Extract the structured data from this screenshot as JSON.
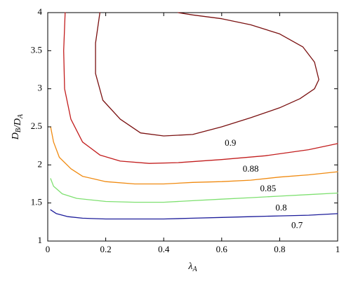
{
  "chart_data": {
    "type": "line",
    "xlabel": "λ",
    "xlabel_sub": "A",
    "ylabel_parts": [
      {
        "t": "D",
        "sub": "B"
      },
      {
        "t": "/",
        "sub": ""
      },
      {
        "t": "D",
        "sub": "A"
      }
    ],
    "xlim": [
      0,
      1
    ],
    "ylim": [
      1,
      4
    ],
    "x_ticks": [
      0,
      0.2,
      0.4,
      0.6,
      0.8,
      1
    ],
    "x_tick_labels": [
      "0",
      "0.2",
      "0.4",
      "0.6",
      "0.8",
      "1"
    ],
    "y_ticks": [
      1,
      1.5,
      2,
      2.5,
      3,
      3.5,
      4
    ],
    "y_tick_labels": [
      "1",
      "1.5",
      "2",
      "2.5",
      "3",
      "3.5",
      "4"
    ],
    "grid": false,
    "series": [
      {
        "name": "0.9",
        "color": "#7a1010",
        "label_at": [
          0.63,
          2.28
        ],
        "points": [
          [
            0.18,
            4.0
          ],
          [
            0.165,
            3.6
          ],
          [
            0.165,
            3.2
          ],
          [
            0.19,
            2.85
          ],
          [
            0.25,
            2.6
          ],
          [
            0.32,
            2.42
          ],
          [
            0.4,
            2.38
          ],
          [
            0.5,
            2.4
          ],
          [
            0.6,
            2.5
          ],
          [
            0.7,
            2.62
          ],
          [
            0.8,
            2.75
          ],
          [
            0.87,
            2.87
          ],
          [
            0.92,
            3.0
          ],
          [
            0.935,
            3.12
          ],
          [
            0.92,
            3.35
          ],
          [
            0.88,
            3.55
          ],
          [
            0.8,
            3.72
          ],
          [
            0.7,
            3.84
          ],
          [
            0.6,
            3.92
          ],
          [
            0.5,
            3.97
          ],
          [
            0.45,
            4.0
          ]
        ]
      },
      {
        "name": "0.88",
        "color": "#c21d1d",
        "label_at": [
          0.7,
          1.94
        ],
        "points": [
          [
            0.06,
            4.0
          ],
          [
            0.055,
            3.5
          ],
          [
            0.058,
            3.0
          ],
          [
            0.08,
            2.6
          ],
          [
            0.12,
            2.3
          ],
          [
            0.18,
            2.13
          ],
          [
            0.25,
            2.05
          ],
          [
            0.35,
            2.02
          ],
          [
            0.45,
            2.03
          ],
          [
            0.6,
            2.07
          ],
          [
            0.75,
            2.12
          ],
          [
            0.9,
            2.2
          ],
          [
            1.0,
            2.28
          ]
        ]
      },
      {
        "name": "0.85",
        "color": "#f08a10",
        "label_at": [
          0.76,
          1.68
        ],
        "points": [
          [
            0.01,
            2.5
          ],
          [
            0.02,
            2.3
          ],
          [
            0.04,
            2.1
          ],
          [
            0.08,
            1.95
          ],
          [
            0.12,
            1.85
          ],
          [
            0.2,
            1.78
          ],
          [
            0.3,
            1.75
          ],
          [
            0.4,
            1.75
          ],
          [
            0.5,
            1.77
          ],
          [
            0.6,
            1.78
          ],
          [
            0.7,
            1.8
          ],
          [
            0.8,
            1.84
          ],
          [
            0.9,
            1.87
          ],
          [
            1.0,
            1.91
          ]
        ]
      },
      {
        "name": "0.8",
        "color": "#7ee070",
        "label_at": [
          0.805,
          1.43
        ],
        "points": [
          [
            0.01,
            1.82
          ],
          [
            0.02,
            1.72
          ],
          [
            0.05,
            1.62
          ],
          [
            0.1,
            1.56
          ],
          [
            0.2,
            1.52
          ],
          [
            0.3,
            1.51
          ],
          [
            0.4,
            1.51
          ],
          [
            0.5,
            1.53
          ],
          [
            0.6,
            1.55
          ],
          [
            0.7,
            1.57
          ],
          [
            0.8,
            1.59
          ],
          [
            0.9,
            1.61
          ],
          [
            1.0,
            1.63
          ]
        ]
      },
      {
        "name": "0.7",
        "color": "#1c1c9a",
        "label_at": [
          0.86,
          1.2
        ],
        "points": [
          [
            0.01,
            1.41
          ],
          [
            0.03,
            1.36
          ],
          [
            0.07,
            1.32
          ],
          [
            0.12,
            1.3
          ],
          [
            0.2,
            1.29
          ],
          [
            0.3,
            1.29
          ],
          [
            0.4,
            1.29
          ],
          [
            0.5,
            1.3
          ],
          [
            0.6,
            1.31
          ],
          [
            0.7,
            1.32
          ],
          [
            0.8,
            1.33
          ],
          [
            0.9,
            1.34
          ],
          [
            1.0,
            1.36
          ]
        ]
      }
    ]
  }
}
